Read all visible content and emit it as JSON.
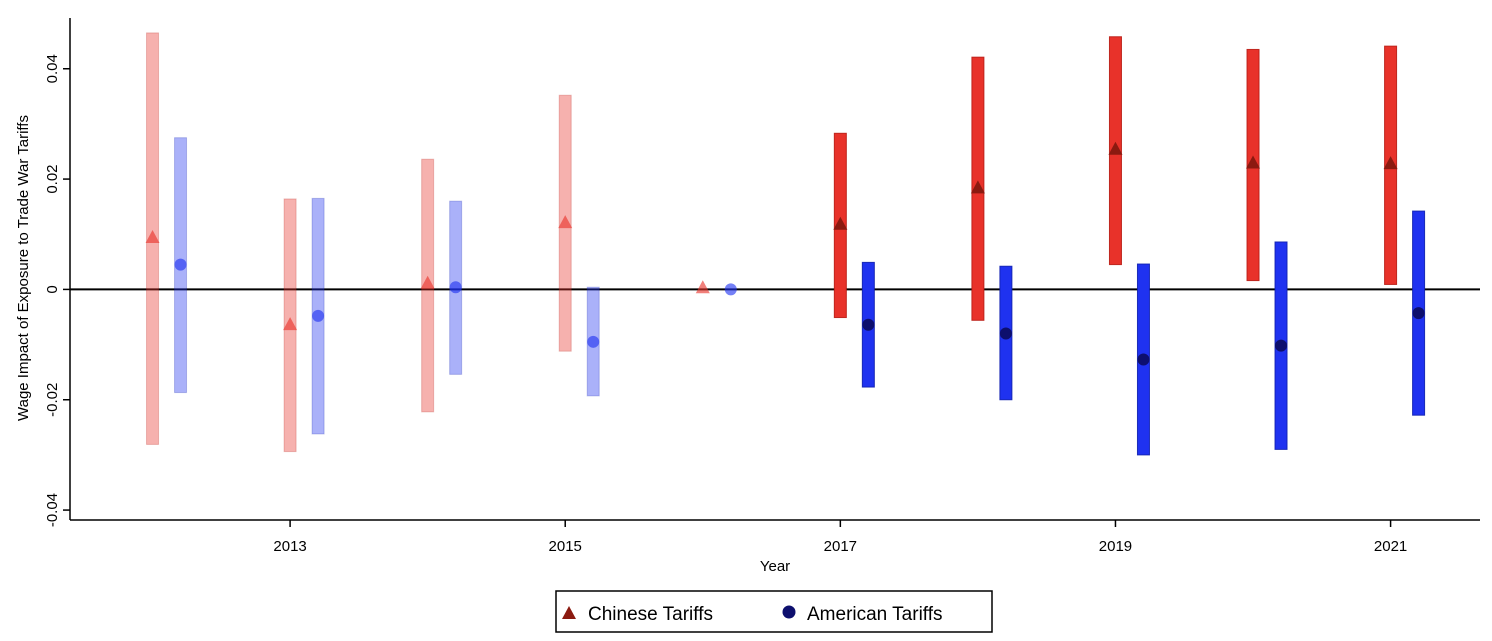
{
  "chart_data": {
    "type": "scatter",
    "title": "",
    "xlabel": "Year",
    "ylabel": "Wage Impact of Exposure to Trade War Tariffs",
    "xlim": [
      2011.4,
      2021.65
    ],
    "ylim": [
      -0.0418,
      0.0492
    ],
    "xticks": [
      2013,
      2015,
      2017,
      2019,
      2021
    ],
    "xtick_labels": [
      "2013",
      "2015",
      "2017",
      "2019",
      "2021"
    ],
    "yticks": [
      -0.04,
      -0.02,
      0,
      0.02,
      0.04
    ],
    "ytick_labels": [
      "-0.04",
      "-0.02",
      "0",
      "0.02",
      "0.04"
    ],
    "grid": false,
    "reference_line": 0,
    "legend_position": "bottom-center",
    "colors": {
      "chinese_bar": "#e8322a",
      "chinese_marker": "#8b1a10",
      "american_bar": "#1f32f0",
      "american_marker": "#0d0f6e",
      "pre_period_opacity": 0.38
    },
    "series": [
      {
        "name": "Chinese Tariffs",
        "marker": "triangle",
        "x": [
          2012,
          2013,
          2014,
          2015,
          2016,
          2017,
          2018,
          2019,
          2020,
          2021
        ],
        "values": [
          0.0095,
          -0.0063,
          0.0012,
          0.0122,
          0.0004,
          0.0119,
          0.0185,
          0.0255,
          0.023,
          0.0229
        ],
        "ci_low": [
          -0.0281,
          -0.0294,
          -0.0222,
          -0.0112,
          null,
          -0.0051,
          -0.0056,
          0.0045,
          0.0016,
          0.0009
        ],
        "ci_high": [
          0.0465,
          0.0164,
          0.0236,
          0.0352,
          null,
          0.0283,
          0.0421,
          0.0458,
          0.0435,
          0.0441
        ],
        "period": [
          "pre",
          "pre",
          "pre",
          "pre",
          "pre",
          "post",
          "post",
          "post",
          "post",
          "post"
        ]
      },
      {
        "name": "American Tariffs",
        "marker": "circle",
        "x": [
          2012,
          2013,
          2014,
          2015,
          2016,
          2017,
          2018,
          2019,
          2020,
          2021
        ],
        "values": [
          0.0045,
          -0.0048,
          0.0004,
          -0.0095,
          0.0,
          -0.0064,
          -0.008,
          -0.0127,
          -0.0102,
          -0.0043
        ],
        "ci_low": [
          -0.0187,
          -0.0262,
          -0.0154,
          -0.0193,
          null,
          -0.0177,
          -0.02,
          -0.03,
          -0.029,
          -0.0228
        ],
        "ci_high": [
          0.0275,
          0.0165,
          0.016,
          0.0004,
          null,
          0.0049,
          0.0042,
          0.0046,
          0.0086,
          0.0142
        ],
        "period": [
          "pre",
          "pre",
          "pre",
          "pre",
          "pre",
          "post",
          "post",
          "post",
          "post",
          "post"
        ]
      }
    ]
  }
}
